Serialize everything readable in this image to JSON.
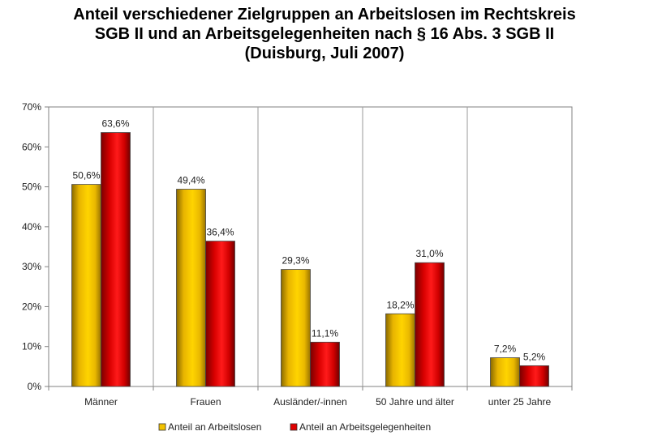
{
  "chart_data": {
    "type": "bar",
    "title_lines": [
      "Anteil verschiedener Zielgruppen an Arbeitslosen im Rechtskreis",
      "SGB II und an Arbeitsgelegenheiten nach § 16 Abs. 3 SGB II",
      "(Duisburg, Juli 2007)"
    ],
    "categories": [
      "Männer",
      "Frauen",
      "Ausländer/-innen",
      "50 Jahre und älter",
      "unter 25 Jahre"
    ],
    "series": [
      {
        "name": "Anteil an Arbeitslosen",
        "color": "#F2C200",
        "values": [
          50.6,
          49.4,
          29.3,
          18.2,
          7.2
        ],
        "labels": [
          "50,6%",
          "49,4%",
          "29,3%",
          "18,2%",
          "7,2%"
        ]
      },
      {
        "name": "Anteil an Arbeitsgelegenheiten",
        "color": "#E00000",
        "values": [
          63.6,
          36.4,
          11.1,
          31.0,
          5.2
        ],
        "labels": [
          "63,6%",
          "36,4%",
          "11,1%",
          "31,0%",
          "5,2%"
        ]
      }
    ],
    "ylim": [
      0,
      70
    ],
    "yticks": [
      0,
      10,
      20,
      30,
      40,
      50,
      60,
      70
    ],
    "ytick_labels": [
      "0%",
      "10%",
      "20%",
      "30%",
      "40%",
      "50%",
      "60%",
      "70%"
    ],
    "xlabel": "",
    "ylabel": "",
    "grid": "vertical dividers between categories",
    "legend_position": "bottom"
  }
}
